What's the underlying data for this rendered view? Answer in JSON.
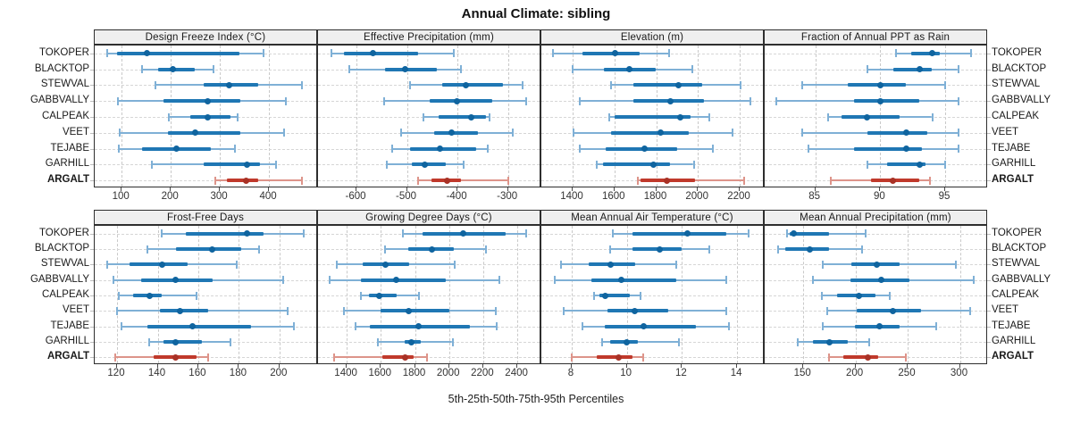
{
  "title": "Annual Climate: sibling",
  "caption": "5th-25th-50th-75th-95th Percentiles",
  "stations": [
    "TOKOPER",
    "BLACKTOP",
    "STEWVAL",
    "GABBVALLY",
    "CALPEAK",
    "VEET",
    "TEJABE",
    "GARHILL",
    "ARGALT"
  ],
  "highlight_station": "ARGALT",
  "colors": {
    "normal": {
      "whisker": "#7fb0d6",
      "bar": "#1f77b4",
      "dot": "#0f649f"
    },
    "highlight": {
      "whisker": "#dd948a",
      "bar": "#c0392b",
      "dot": "#a93226"
    },
    "strip_bg": "#efefef",
    "panel_border": "#2e2e2e",
    "grid": "#c9c9c9",
    "text": "#1a1a1a"
  },
  "chart_data": {
    "type": "scatter",
    "subtype": "percentile-interval-dotplot (5-25-50-75-95), 2x4 trellis, shared station y-axis",
    "percentile_levels": [
      5,
      25,
      50,
      75,
      95
    ],
    "legend_position": "none",
    "grid": "dashed",
    "panels": [
      {
        "title": "Design Freeze Index (°C)",
        "axis": {
          "min": 45,
          "max": 500,
          "ticks": [
            100,
            200,
            300,
            400
          ]
        },
        "percentiles_by_station": [
          [
            70,
            91,
            152,
            340,
            388
          ],
          [
            142,
            175,
            205,
            249,
            287
          ],
          [
            169,
            267,
            318,
            378,
            467
          ],
          [
            93,
            185,
            276,
            342,
            435
          ],
          [
            196,
            240,
            276,
            322,
            336
          ],
          [
            96,
            194,
            249,
            342,
            431
          ],
          [
            94,
            142,
            212,
            282,
            330
          ],
          [
            162,
            267,
            355,
            382,
            415
          ],
          [
            291,
            315,
            353,
            378,
            467
          ]
        ]
      },
      {
        "title": "Effective Precipitation (mm)",
        "axis": {
          "min": -676,
          "max": -234,
          "ticks": [
            -600,
            -500,
            -400,
            -300
          ]
        },
        "percentiles_by_station": [
          [
            -650,
            -625,
            -568,
            -478,
            -408
          ],
          [
            -614,
            -543,
            -504,
            -441,
            -393
          ],
          [
            -494,
            -430,
            -384,
            -310,
            -272
          ],
          [
            -545,
            -455,
            -402,
            -331,
            -264
          ],
          [
            -467,
            -437,
            -372,
            -343,
            -336
          ],
          [
            -512,
            -446,
            -411,
            -360,
            -290
          ],
          [
            -529,
            -494,
            -434,
            -363,
            -340
          ],
          [
            -540,
            -490,
            -464,
            -423,
            -388
          ],
          [
            -478,
            -451,
            -420,
            -393,
            -300
          ]
        ]
      },
      {
        "title": "Elevation (m)",
        "axis": {
          "min": 1250,
          "max": 2320,
          "ticks": [
            1400,
            1600,
            1800,
            2000,
            2200
          ]
        },
        "percentiles_by_station": [
          [
            1305,
            1445,
            1605,
            1720,
            1860
          ],
          [
            1400,
            1550,
            1670,
            1800,
            1975
          ],
          [
            1585,
            1690,
            1905,
            2020,
            2205
          ],
          [
            1435,
            1690,
            1870,
            2030,
            2250
          ],
          [
            1575,
            1600,
            1915,
            1965,
            2055
          ],
          [
            1405,
            1585,
            1820,
            1955,
            2165
          ],
          [
            1435,
            1560,
            1745,
            1900,
            2070
          ],
          [
            1515,
            1545,
            1785,
            1865,
            1980
          ],
          [
            1710,
            1725,
            1850,
            1985,
            2220
          ]
        ]
      },
      {
        "title": "Fraction of Annual PPT as Rain",
        "axis": {
          "min": 81.1,
          "max": 98.3,
          "ticks": [
            85,
            90,
            95
          ]
        },
        "percentiles_by_station": [
          [
            91.2,
            92.4,
            94.0,
            94.6,
            97.0
          ],
          [
            89.0,
            91.0,
            93.0,
            94.0,
            96.0
          ],
          [
            84.0,
            87.5,
            90.0,
            92.0,
            95.0
          ],
          [
            82.0,
            88.0,
            90.0,
            93.0,
            96.0
          ],
          [
            86.0,
            87.0,
            89.0,
            91.5,
            94.0
          ],
          [
            84.0,
            89.0,
            92.0,
            93.6,
            96.0
          ],
          [
            84.5,
            88.0,
            92.0,
            93.2,
            96.0
          ],
          [
            89.0,
            90.5,
            93.0,
            93.5,
            95.0
          ],
          [
            86.2,
            89.3,
            91.0,
            93.0,
            93.8
          ]
        ]
      },
      {
        "title": "Frost-Free Days",
        "axis": {
          "min": 109,
          "max": 219,
          "ticks": [
            120,
            140,
            160,
            180,
            200
          ]
        },
        "percentiles_by_station": [
          [
            142,
            154,
            184,
            192,
            212
          ],
          [
            135,
            149,
            167,
            181,
            190
          ],
          [
            115,
            126,
            142,
            155,
            179
          ],
          [
            118,
            132,
            149,
            167,
            202
          ],
          [
            121,
            128,
            136,
            142,
            159
          ],
          [
            120,
            141,
            151,
            165,
            204
          ],
          [
            122,
            135,
            157,
            186,
            207
          ],
          [
            136,
            143,
            149,
            162,
            176
          ],
          [
            119,
            138,
            149,
            159,
            165
          ]
        ]
      },
      {
        "title": "Growing Degree Days (°C)",
        "axis": {
          "min": 1232,
          "max": 2541,
          "ticks": [
            1400,
            1600,
            1800,
            2000,
            2200,
            2400
          ]
        },
        "percentiles_by_station": [
          [
            1730,
            1845,
            2080,
            2330,
            2450
          ],
          [
            1625,
            1760,
            1900,
            2030,
            2215
          ],
          [
            1340,
            1495,
            1625,
            1765,
            2035
          ],
          [
            1300,
            1485,
            1690,
            1980,
            2295
          ],
          [
            1485,
            1530,
            1590,
            1695,
            1825
          ],
          [
            1385,
            1600,
            1765,
            2000,
            2275
          ],
          [
            1450,
            1535,
            1820,
            2120,
            2280
          ],
          [
            1585,
            1740,
            1780,
            1835,
            2020
          ],
          [
            1325,
            1610,
            1740,
            1790,
            1870
          ]
        ]
      },
      {
        "title": "Mean Annual Air Temperature (°C)",
        "axis": {
          "min": 6.9,
          "max": 15.0,
          "ticks": [
            8,
            10,
            12,
            14
          ]
        },
        "percentiles_by_station": [
          [
            9.5,
            10.2,
            12.2,
            13.6,
            14.4
          ],
          [
            9.4,
            10.2,
            11.2,
            12.0,
            13.0
          ],
          [
            7.6,
            8.6,
            9.4,
            10.3,
            11.8
          ],
          [
            7.4,
            8.7,
            9.8,
            11.8,
            13.6
          ],
          [
            8.8,
            9.0,
            9.2,
            10.1,
            10.5
          ],
          [
            7.7,
            9.3,
            10.3,
            11.5,
            13.6
          ],
          [
            8.4,
            9.2,
            10.6,
            12.5,
            13.7
          ],
          [
            9.1,
            9.4,
            10.0,
            10.4,
            11.9
          ],
          [
            8.0,
            8.9,
            9.7,
            10.2,
            10.6
          ]
        ]
      },
      {
        "title": "Mean Annual Precipitation (mm)",
        "axis": {
          "min": 113,
          "max": 327,
          "ticks": [
            150,
            200,
            250,
            300
          ]
        },
        "percentiles_by_station": [
          [
            134,
            137,
            141,
            175,
            210
          ],
          [
            126,
            133,
            156,
            175,
            206
          ],
          [
            169,
            196,
            220,
            242,
            296
          ],
          [
            159,
            195,
            225,
            252,
            313
          ],
          [
            168,
            182,
            203,
            219,
            233
          ],
          [
            173,
            201,
            236,
            263,
            310
          ],
          [
            169,
            199,
            223,
            242,
            277
          ],
          [
            145,
            159,
            175,
            193,
            213
          ],
          [
            175,
            188,
            212,
            222,
            248
          ]
        ]
      }
    ]
  }
}
